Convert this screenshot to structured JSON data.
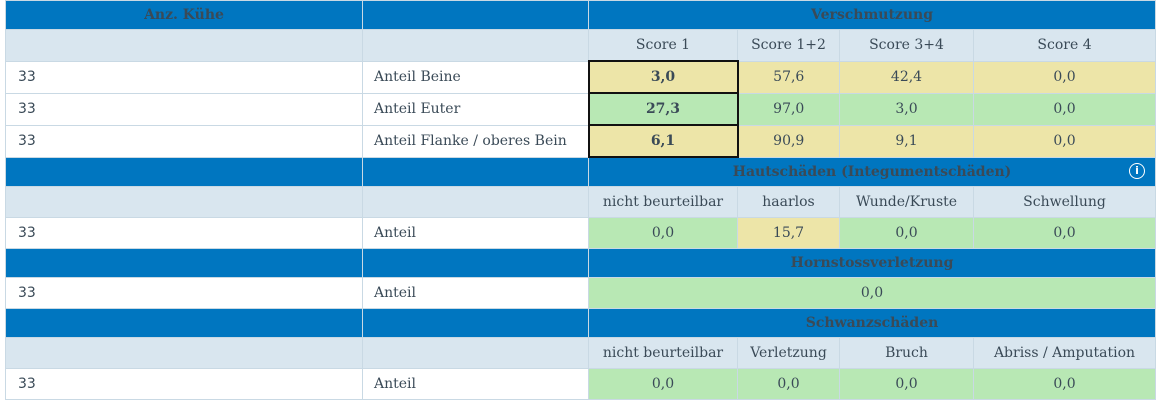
{
  "header": {
    "col1": "Anz. Kühe",
    "col2": "",
    "section": "Verschmutzung"
  },
  "verschmutzung": {
    "subheaders": [
      "Score 1",
      "Score 1+2",
      "Score 3+4",
      "Score 4"
    ],
    "rows": [
      {
        "count": "33",
        "label": "Anteil Beine",
        "values": [
          "3,0",
          "57,6",
          "42,4",
          "0,0"
        ]
      },
      {
        "count": "33",
        "label": "Anteil Euter",
        "values": [
          "27,3",
          "97,0",
          "3,0",
          "0,0"
        ]
      },
      {
        "count": "33",
        "label": "Anteil Flanke / oberes Bein",
        "values": [
          "6,1",
          "90,9",
          "9,1",
          "0,0"
        ]
      }
    ]
  },
  "hautschaeden": {
    "title": "Hautschäden (Integumentschäden)",
    "info_icon": "info-icon",
    "subheaders": [
      "nicht beurteilbar",
      "haarlos",
      "Wunde/Kruste",
      "Schwellung"
    ],
    "row": {
      "count": "33",
      "label": "Anteil",
      "values": [
        "0,0",
        "15,7",
        "0,0",
        "0,0"
      ]
    }
  },
  "hornstoss": {
    "title": "Hornstossverletzung",
    "row": {
      "count": "33",
      "label": "Anteil",
      "value": "0,0"
    }
  },
  "schwanz": {
    "title": "Schwanzschäden",
    "subheaders": [
      "nicht beurteilbar",
      "Verletzung",
      "Bruch",
      "Abriss / Amputation"
    ],
    "row": {
      "count": "33",
      "label": "Anteil",
      "values": [
        "0,0",
        "0,0",
        "0,0",
        "0,0"
      ]
    }
  },
  "colors": {
    "header_blue": "#0076c0",
    "subheader": "#d9e6ef",
    "yellow": "#ede5a8",
    "green": "#b8e8b4"
  }
}
